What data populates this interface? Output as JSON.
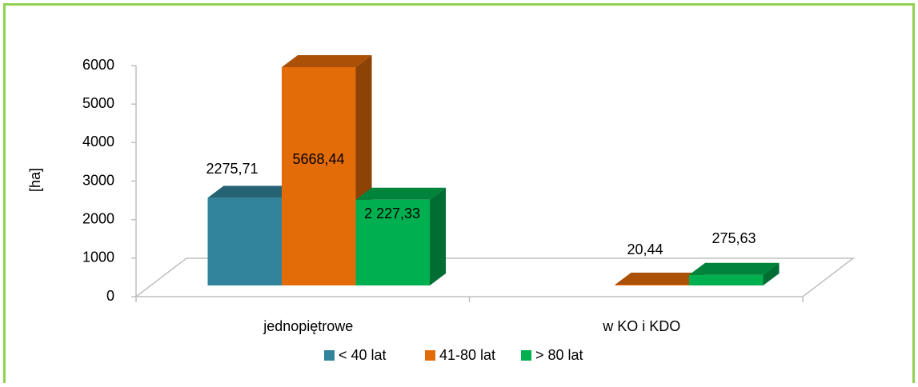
{
  "chart_data": {
    "type": "bar3d",
    "ylabel": "[ha]",
    "categories": [
      "jednopiętrowe",
      "w KO i KDO"
    ],
    "series": [
      {
        "name": "< 40 lat",
        "color": "#31849b",
        "values": [
          2275.71,
          null
        ],
        "value_labels": [
          "2275,71",
          null
        ]
      },
      {
        "name": "41-80 lat",
        "color": "#e36c09",
        "values": [
          5668.44,
          20.44
        ],
        "value_labels": [
          "5668,44",
          "20,44"
        ]
      },
      {
        "name": "> 80 lat",
        "color": "#00b050",
        "values": [
          2227.33,
          275.63
        ],
        "value_labels": [
          "2 227,33",
          "275,63"
        ]
      }
    ],
    "ylim": [
      0,
      6000
    ],
    "yticks": [
      0,
      1000,
      2000,
      3000,
      4000,
      5000,
      6000
    ],
    "legend": "bottom"
  }
}
